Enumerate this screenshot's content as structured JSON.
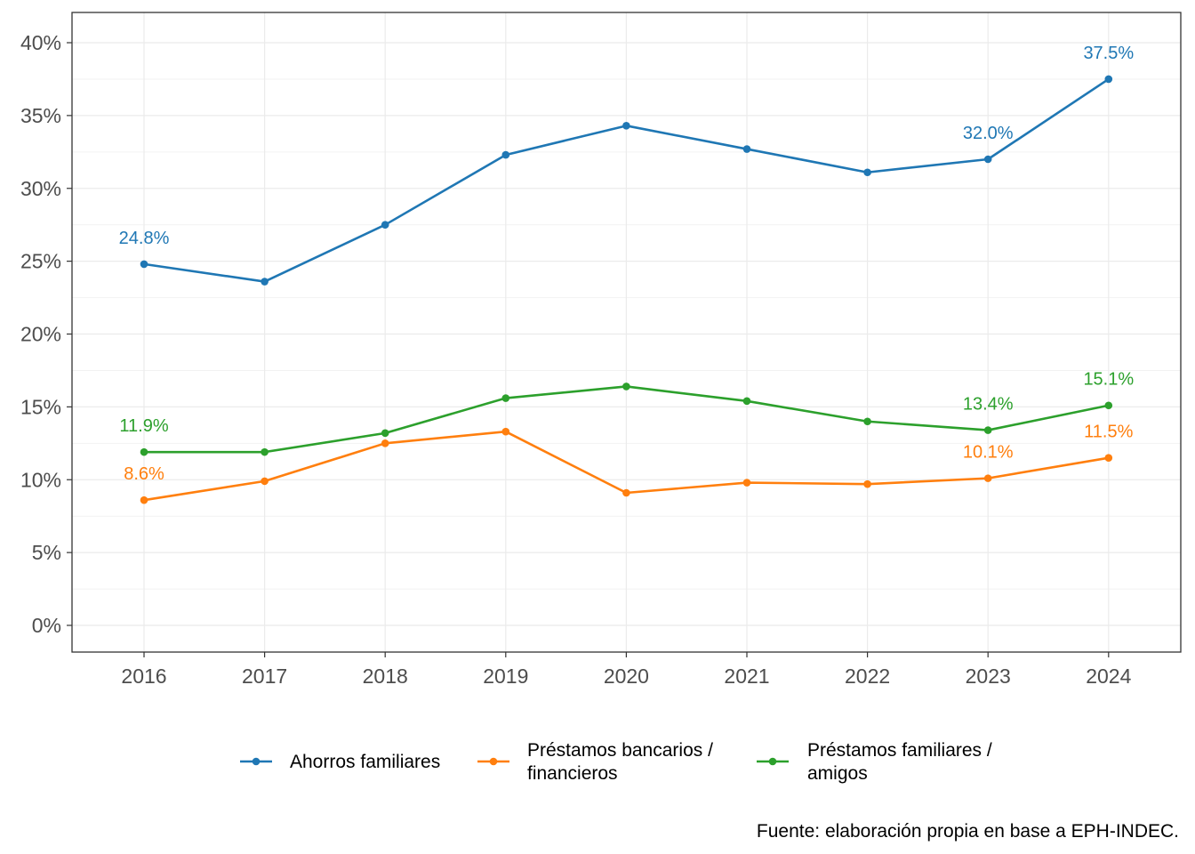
{
  "chart_data": {
    "type": "line",
    "x": [
      "2016",
      "2017",
      "2018",
      "2019",
      "2020",
      "2021",
      "2022",
      "2023",
      "2024"
    ],
    "ylim": [
      0,
      40
    ],
    "y_ticks": [
      0,
      5,
      10,
      15,
      20,
      25,
      30,
      35,
      40
    ],
    "y_tick_labels": [
      "0%",
      "5%",
      "10%",
      "15%",
      "20%",
      "25%",
      "30%",
      "35%",
      "40%"
    ],
    "grid": true,
    "legend_position": "bottom",
    "series": [
      {
        "name": "Ahorros familiares",
        "legend_lines": [
          "Ahorros familiares"
        ],
        "color": "#1f77b4",
        "values": [
          24.8,
          23.6,
          27.5,
          32.3,
          34.3,
          32.7,
          31.1,
          32.0,
          37.5
        ],
        "labels": [
          {
            "index": 0,
            "text": "24.8%"
          },
          {
            "index": 7,
            "text": "32.0%"
          },
          {
            "index": 8,
            "text": "37.5%"
          }
        ]
      },
      {
        "name": "Préstamos bancarios / financieros",
        "legend_lines": [
          "Préstamos bancarios /",
          "financieros"
        ],
        "color": "#ff7f0e",
        "values": [
          8.6,
          9.9,
          12.5,
          13.3,
          9.1,
          9.8,
          9.7,
          10.1,
          11.5
        ],
        "labels": [
          {
            "index": 0,
            "text": "8.6%"
          },
          {
            "index": 7,
            "text": "10.1%"
          },
          {
            "index": 8,
            "text": "11.5%"
          }
        ]
      },
      {
        "name": "Préstamos familiares / amigos",
        "legend_lines": [
          "Préstamos familiares /",
          "amigos"
        ],
        "color": "#2ca02c",
        "values": [
          11.9,
          11.9,
          13.2,
          15.6,
          16.4,
          15.4,
          14.0,
          13.4,
          15.1
        ],
        "labels": [
          {
            "index": 0,
            "text": "11.9%"
          },
          {
            "index": 7,
            "text": "13.4%"
          },
          {
            "index": 8,
            "text": "15.1%"
          }
        ]
      }
    ],
    "caption": "Fuente: elaboración propia en base a EPH-INDEC."
  }
}
